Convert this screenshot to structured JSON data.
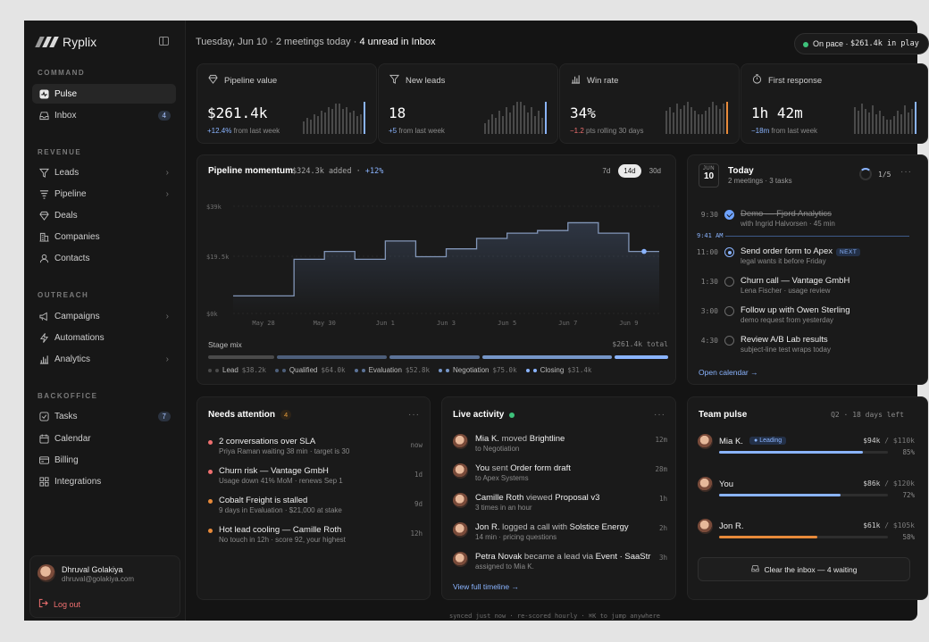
{
  "app": {
    "name": "Ryplix"
  },
  "sidebar": {
    "sections": [
      {
        "label": "COMMAND"
      },
      {
        "label": "REVENUE"
      },
      {
        "label": "OUTREACH"
      },
      {
        "label": "BACKOFFICE"
      }
    ],
    "items": [
      {
        "label": "Pulse",
        "icon": "pulse-icon",
        "active": true
      },
      {
        "label": "Inbox",
        "icon": "inbox-icon",
        "count": "4"
      },
      {
        "label": "Leads",
        "icon": "funnel-icon"
      },
      {
        "label": "Pipeline",
        "icon": "pipeline-icon"
      },
      {
        "label": "Deals",
        "icon": "diamond-icon"
      },
      {
        "label": "Companies",
        "icon": "building-icon"
      },
      {
        "label": "Contacts",
        "icon": "person-icon"
      },
      {
        "label": "Campaigns",
        "icon": "megaphone-icon"
      },
      {
        "label": "Automations",
        "icon": "bolt-icon"
      },
      {
        "label": "Analytics",
        "icon": "bar-chart-icon"
      },
      {
        "label": "Tasks",
        "icon": "checkbox-icon",
        "count": "7"
      },
      {
        "label": "Calendar",
        "icon": "calendar-icon"
      },
      {
        "label": "Billing",
        "icon": "card-icon"
      },
      {
        "label": "Integrations",
        "icon": "grid-icon"
      }
    ],
    "user": {
      "name": "Dhruval Golakiya",
      "email": "dhruval@golakiya.com",
      "logout": "Log out"
    }
  },
  "topbar": {
    "date_text": "Tuesday, Jun 10 · 2 meetings today · ",
    "unread": "4 unread in Inbox",
    "pace_label": "On pace · ",
    "pace_value": "$261.4k in play"
  },
  "kpis": [
    {
      "title": "Pipeline value",
      "icon": "diamond-icon",
      "value": "$261.4k",
      "delta": "+12.4%",
      "delta_color": "#8ab4ff",
      "note": " from last week",
      "accent": "#8ab4ff"
    },
    {
      "title": "New leads",
      "icon": "funnel-icon",
      "value": "18",
      "delta": "+5",
      "delta_color": "#8ab4ff",
      "note": " from last week",
      "accent": "#8ab4ff"
    },
    {
      "title": "Win rate",
      "icon": "bar-chart-icon",
      "value": "34%",
      "delta": "−1.2",
      "delta_color": "#f07070",
      "note": " pts rolling 30 days",
      "accent": "#e88a3a"
    },
    {
      "title": "First response",
      "icon": "timer-icon",
      "value": "1h 42m",
      "delta": "−18m",
      "delta_color": "#8ab4ff",
      "note": " from last week",
      "accent": "#8ab4ff"
    }
  ],
  "momentum": {
    "title": "Pipeline momentum",
    "added": "$324.3k added · ",
    "delta": "+12%",
    "ranges": [
      "7d",
      "14d",
      "30d"
    ],
    "selected_range": "14d",
    "stage_title": "Stage mix",
    "stage_total": "$261.4k total",
    "stages": [
      {
        "name": "Lead",
        "value": "$38.2k",
        "color": "#4a4a4a"
      },
      {
        "name": "Qualified",
        "value": "$64.0k",
        "color": "#4d5e7a"
      },
      {
        "name": "Evaluation",
        "value": "$52.8k",
        "color": "#5c7398"
      },
      {
        "name": "Negotiation",
        "value": "$75.0k",
        "color": "#7696c8"
      },
      {
        "name": "Closing",
        "value": "$31.4k",
        "color": "#8ab4ff"
      }
    ]
  },
  "chart_data": {
    "type": "line",
    "title": "Pipeline momentum",
    "step": true,
    "x": [
      "May 27",
      "May 28",
      "May 29",
      "May 30",
      "May 31",
      "Jun 1",
      "Jun 2",
      "Jun 3",
      "Jun 4",
      "Jun 5",
      "Jun 6",
      "Jun 7",
      "Jun 8",
      "Jun 9",
      "Jun 10"
    ],
    "x_tick_labels": [
      "May 28",
      "May 30",
      "Jun 1",
      "Jun 3",
      "Jun 5",
      "Jun 7",
      "Jun 9"
    ],
    "y_tick_labels": [
      "$39k",
      "$19.5k",
      "$0k"
    ],
    "values": [
      5,
      5,
      19,
      22,
      19,
      26,
      20,
      23,
      27,
      29,
      30,
      33,
      29,
      22,
      22
    ],
    "ylim": [
      0,
      41
    ],
    "color": "#8ab4ff",
    "grid": true
  },
  "today": {
    "month": "JUN",
    "day": "10",
    "title": "Today",
    "subtitle": "2 meetings · 3 tasks",
    "progress": "1/5",
    "progress_value": 0.2,
    "now_label": "9:41 AM",
    "events": [
      {
        "time": "9:30",
        "title": "Demo — Fjord Analytics",
        "detail": "with Ingrid Halvorsen · 45 min",
        "state": "done"
      },
      {
        "time": "11:00",
        "title": "Send order form to Apex",
        "detail": "legal wants it before Friday",
        "state": "current",
        "badge": "NEXT"
      },
      {
        "time": "1:30",
        "title": "Churn call — Vantage GmbH",
        "detail": "Lena Fischer · usage review",
        "state": "todo"
      },
      {
        "time": "3:00",
        "title": "Follow up with Owen Sterling",
        "detail": "demo request from yesterday",
        "state": "todo"
      },
      {
        "time": "4:30",
        "title": "Review A/B Lab results",
        "detail": "subject-line test wraps today",
        "state": "todo"
      }
    ],
    "open_calendar": "Open calendar →"
  },
  "attention": {
    "title": "Needs attention",
    "count": "4",
    "items": [
      {
        "title": "2 conversations over SLA",
        "detail": "Priya Raman waiting 38 min · target is 30",
        "time": "now",
        "color": "#f07070"
      },
      {
        "title": "Churn risk — Vantage GmbH",
        "detail": "Usage down 41% MoM · renews Sep 1",
        "time": "1d",
        "color": "#f07070"
      },
      {
        "title": "Cobalt Freight is stalled",
        "detail": "9 days in Evaluation · $21,000 at stake",
        "time": "9d",
        "color": "#e88a3a"
      },
      {
        "title": "Hot lead cooling — Camille Roth",
        "detail": "No touch in 12h · score 92, your highest",
        "time": "12h",
        "color": "#e88a3a"
      }
    ]
  },
  "activity": {
    "title": "Live activity",
    "items": [
      {
        "who": "Mia K.",
        "verb": " moved ",
        "obj": "Brightline",
        "detail": "to Negotiation",
        "time": "12m"
      },
      {
        "who": "You",
        "verb": " sent ",
        "obj": "Order form draft",
        "detail": "to Apex Systems",
        "time": "28m"
      },
      {
        "who": "Camille Roth",
        "verb": " viewed ",
        "obj": "Proposal v3",
        "detail": "3 times in an hour",
        "time": "1h"
      },
      {
        "who": "Jon R.",
        "verb": " logged a call with ",
        "obj": "Solstice Energy",
        "detail": "14 min · pricing questions",
        "time": "2h"
      },
      {
        "who": "Petra Novak",
        "verb": " became a lead via ",
        "obj": "Event · SaaStr",
        "detail": "assigned to Mia K.",
        "time": "3h"
      }
    ],
    "timeline": "View full timeline →"
  },
  "team": {
    "title": "Team pulse",
    "subtitle": "Q2 · 18 days left",
    "members": [
      {
        "name": "Mia K.",
        "badge": "Leading",
        "amount": "$94k",
        "target": " / $110k",
        "pct": "85%",
        "value": 0.85,
        "color": "#8ab4ff"
      },
      {
        "name": "You",
        "amount": "$86k",
        "target": " / $120k",
        "pct": "72%",
        "value": 0.72,
        "color": "#8ab4ff"
      },
      {
        "name": "Jon R.",
        "amount": "$61k",
        "target": " / $105k",
        "pct": "58%",
        "value": 0.58,
        "color": "#e88a3a"
      }
    ],
    "clear_button": "Clear the inbox — 4 waiting"
  },
  "footer": "synced just now · re-scored hourly · ⌘K to jump anywhere"
}
